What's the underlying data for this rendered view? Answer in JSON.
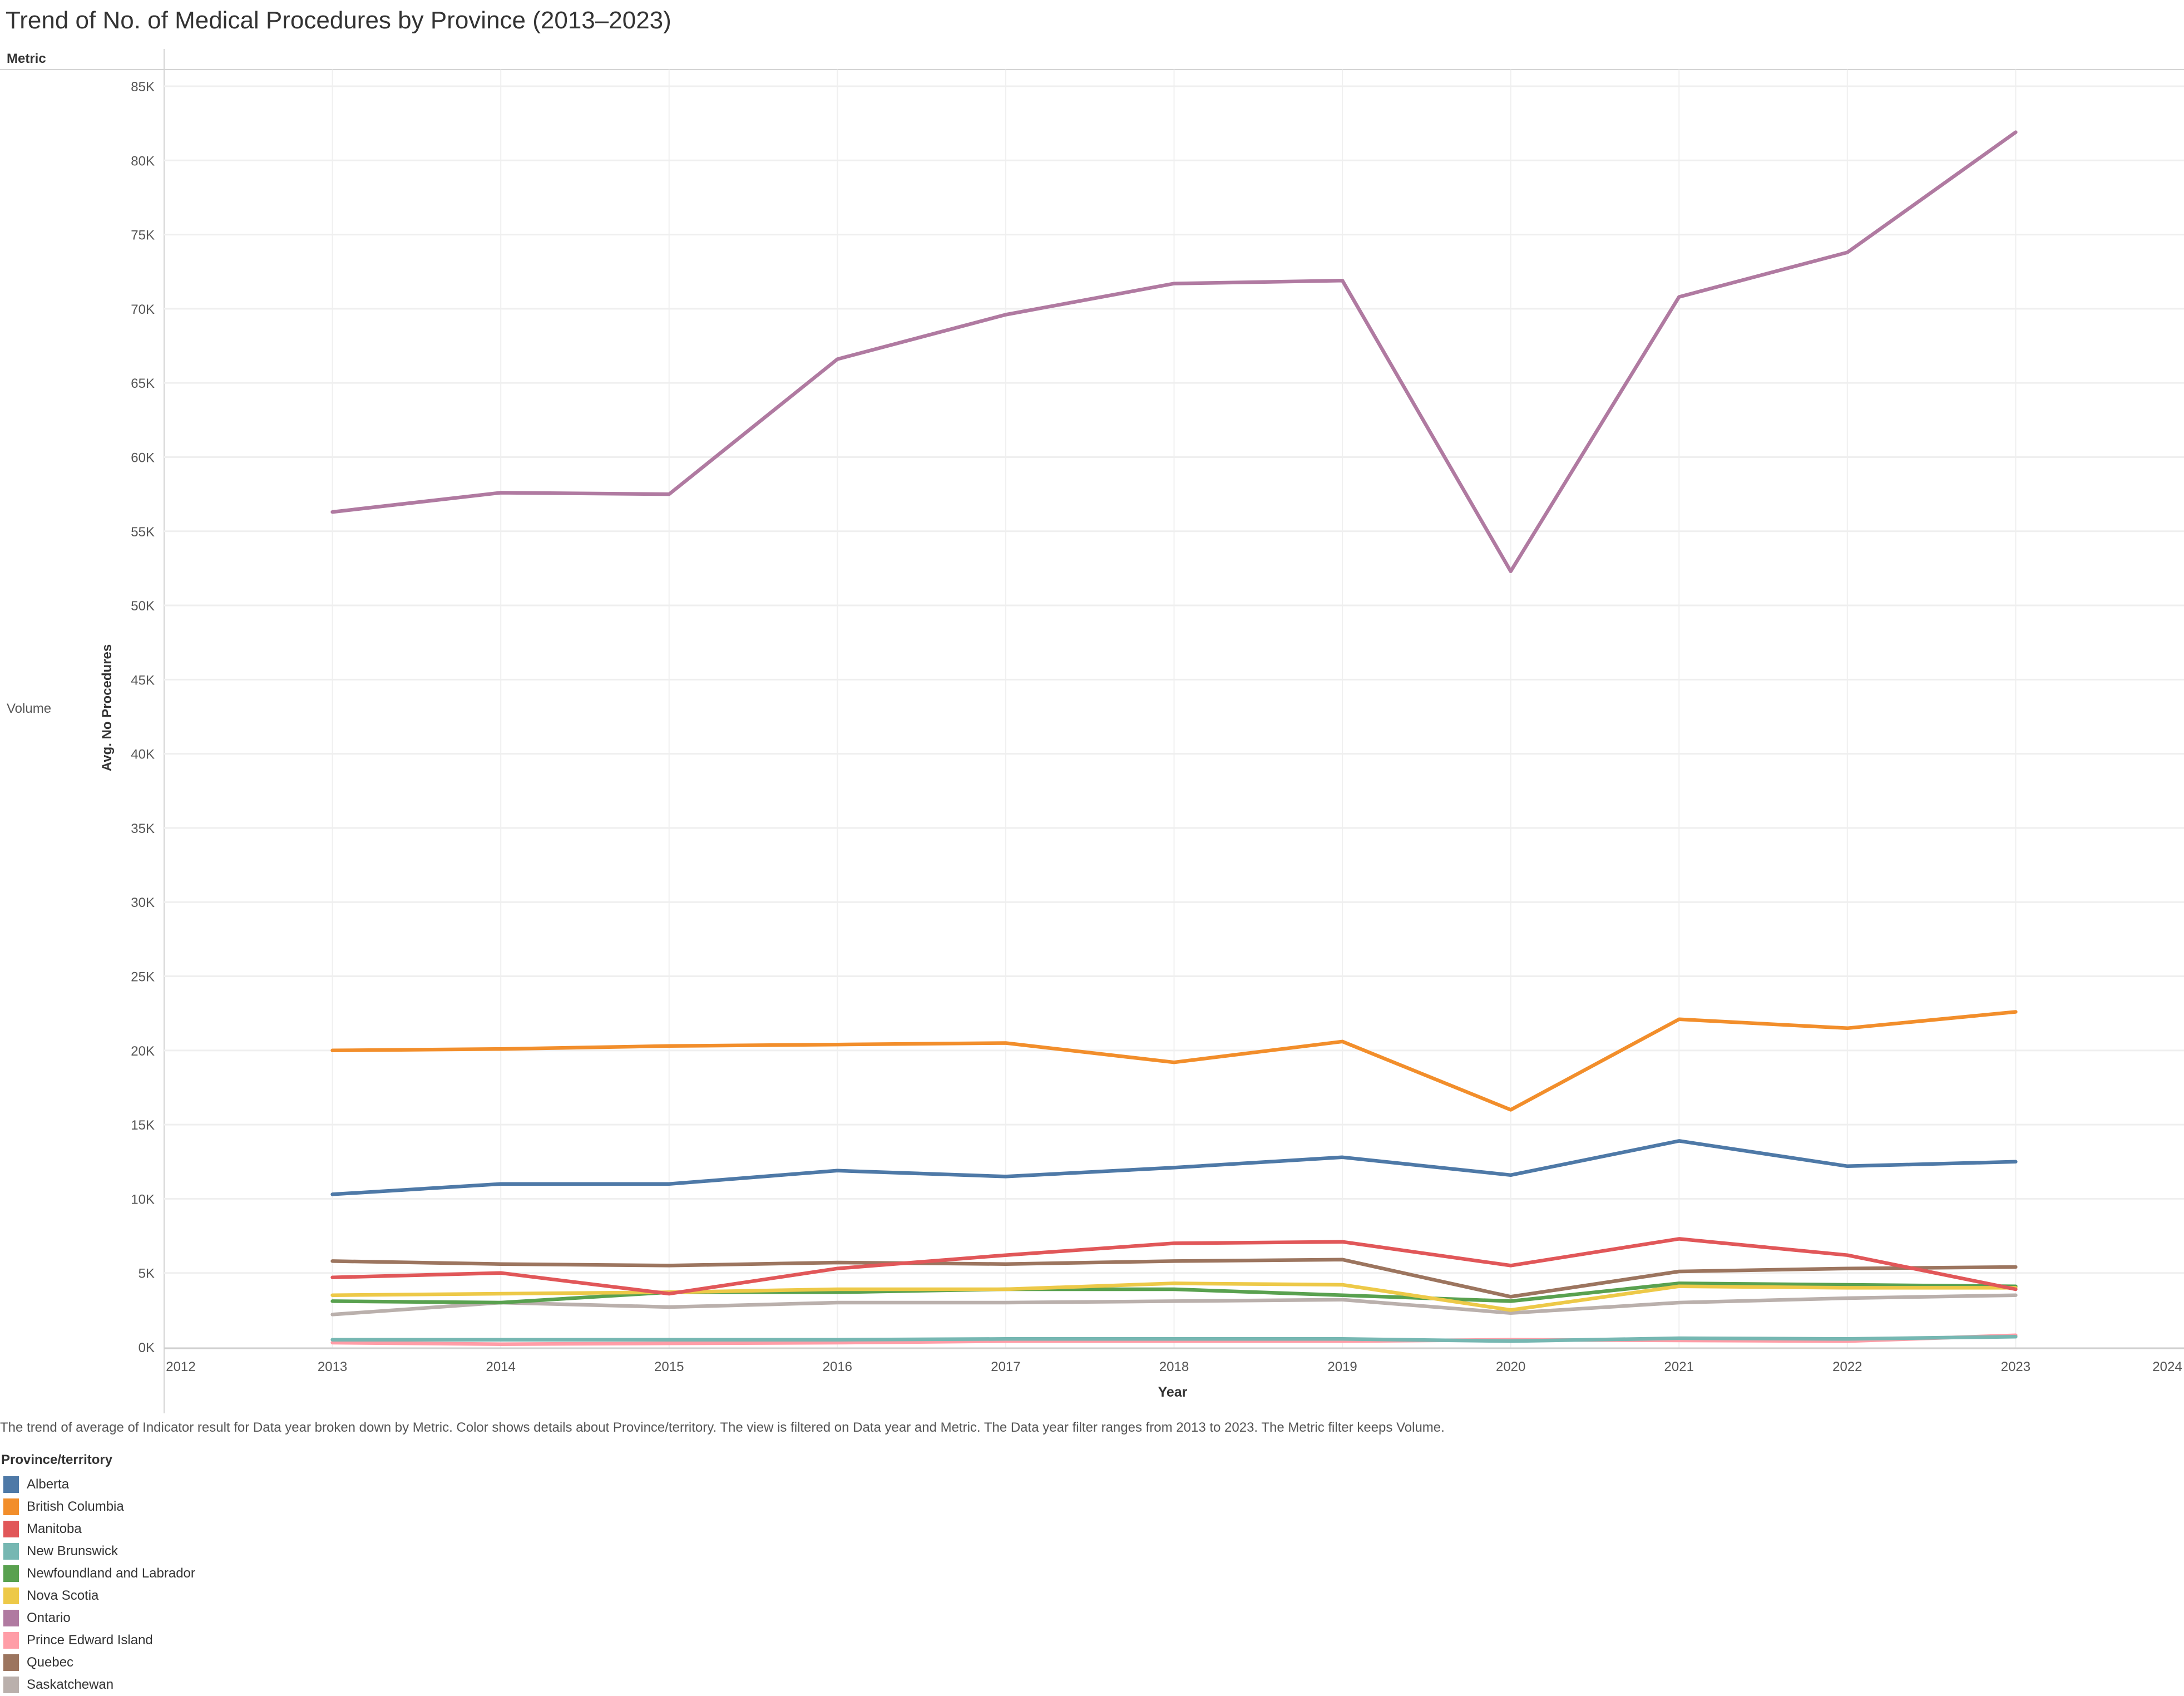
{
  "title": "Trend of No. of Medical Procedures by Province (2013–2023)",
  "metric_header": "Metric",
  "metric_value": "Volume",
  "caption": "The trend of average of Indicator result for Data year broken down by Metric.  Color shows details about Province/territory. The view is filtered on Data year and Metric. The Data year filter ranges from 2013 to 2023. The Metric filter keeps Volume.",
  "legend": {
    "title": "Province/territory",
    "items": [
      {
        "label": "Alberta",
        "color": "#4e79a7"
      },
      {
        "label": "British Columbia",
        "color": "#f28e2b"
      },
      {
        "label": "Manitoba",
        "color": "#e15759"
      },
      {
        "label": "New Brunswick",
        "color": "#76b7b2"
      },
      {
        "label": "Newfoundland and Labrador",
        "color": "#59a14f"
      },
      {
        "label": "Nova Scotia",
        "color": "#edc948"
      },
      {
        "label": "Ontario",
        "color": "#b07aa1"
      },
      {
        "label": "Prince Edward Island",
        "color": "#ff9da7"
      },
      {
        "label": "Quebec",
        "color": "#9c755f"
      },
      {
        "label": "Saskatchewan",
        "color": "#bab0ac"
      }
    ]
  },
  "chart_data": {
    "type": "line",
    "title": "Trend of No. of Medical Procedures by Province (2013–2023)",
    "xlabel": "Year",
    "ylabel": "Avg. No Procedures",
    "x": [
      2013,
      2014,
      2015,
      2016,
      2017,
      2018,
      2019,
      2020,
      2021,
      2022,
      2023
    ],
    "xlim": [
      2012,
      2024
    ],
    "xticks": [
      "2012",
      "2013",
      "2014",
      "2015",
      "2016",
      "2017",
      "2018",
      "2019",
      "2020",
      "2021",
      "2022",
      "2023",
      "2024"
    ],
    "ylim": [
      0,
      85000
    ],
    "yticks": [
      "0K",
      "5K",
      "10K",
      "15K",
      "20K",
      "25K",
      "30K",
      "35K",
      "40K",
      "45K",
      "50K",
      "55K",
      "60K",
      "65K",
      "70K",
      "75K",
      "80K",
      "85K"
    ],
    "grid": true,
    "legend_placement": "bottom-left",
    "series": [
      {
        "name": "Saskatchewan",
        "color": "#bab0ac",
        "values": [
          2200,
          3000,
          2700,
          3000,
          3000,
          3100,
          3200,
          2300,
          3000,
          3300,
          3500
        ]
      },
      {
        "name": "Prince Edward Island",
        "color": "#ff9da7",
        "values": [
          300,
          200,
          250,
          300,
          400,
          400,
          400,
          500,
          450,
          400,
          800
        ]
      },
      {
        "name": "New Brunswick",
        "color": "#76b7b2",
        "values": [
          500,
          500,
          500,
          500,
          550,
          550,
          550,
          400,
          600,
          550,
          700
        ]
      },
      {
        "name": "Newfoundland and Labrador",
        "color": "#59a14f",
        "values": [
          3100,
          3000,
          3700,
          3700,
          3900,
          3900,
          3500,
          3100,
          4300,
          4200,
          4100
        ]
      },
      {
        "name": "Nova Scotia",
        "color": "#edc948",
        "values": [
          3500,
          3600,
          3700,
          3900,
          3900,
          4300,
          4200,
          2500,
          4100,
          4000,
          4000
        ]
      },
      {
        "name": "Quebec",
        "color": "#9c755f",
        "values": [
          5800,
          5600,
          5500,
          5700,
          5600,
          5800,
          5900,
          3400,
          5100,
          5300,
          5400
        ]
      },
      {
        "name": "Manitoba",
        "color": "#e15759",
        "values": [
          4700,
          5000,
          3600,
          5300,
          6200,
          7000,
          7100,
          5500,
          7300,
          6200,
          3900
        ]
      },
      {
        "name": "Alberta",
        "color": "#4e79a7",
        "values": [
          10300,
          11000,
          11000,
          11900,
          11500,
          12100,
          12800,
          11600,
          13900,
          12200,
          12500
        ]
      },
      {
        "name": "British Columbia",
        "color": "#f28e2b",
        "values": [
          20000,
          20100,
          20300,
          20400,
          20500,
          19200,
          20600,
          16000,
          22100,
          21500,
          22600
        ]
      },
      {
        "name": "Ontario",
        "color": "#b07aa1",
        "values": [
          56300,
          57600,
          57500,
          66600,
          69600,
          71700,
          71900,
          52300,
          70800,
          73800,
          81900
        ]
      }
    ]
  }
}
